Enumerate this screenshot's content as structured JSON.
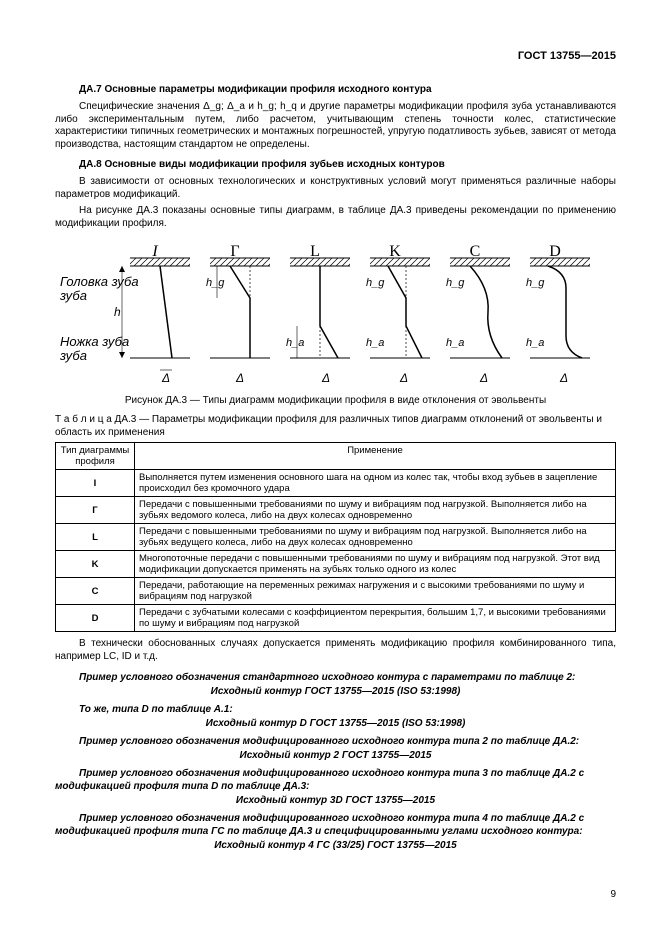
{
  "doc_header": "ГОСТ 13755—2015",
  "section_da7": {
    "heading": "ДА.7 Основные параметры модификации профиля исходного контура",
    "paragraphs": [
      "Специфические значения Δ_g; Δ_a и h_g; h_q и другие параметры модификации профиля зуба устанавливаются либо экспериментальным путем, либо расчетом, учитывающим степень точности колес, статистические характеристики типичных геометрических и монтажных погрешностей, упругую податливость зубьев, зависят от метода производства, настоящим стандартом не определены."
    ]
  },
  "section_da8": {
    "heading": "ДА.8 Основные виды модификации профиля зубьев исходных контуров",
    "paragraphs": [
      "В зависимости от основных технологических и конструктивных условий могут применяться различные наборы параметров модификаций.",
      "На рисунке ДА.3 показаны основные типы диаграмм, в таблице ДА.3 приведены рекомендации по применению модификации профиля."
    ]
  },
  "figure": {
    "profile_letters": [
      "I",
      "Г",
      "L",
      "K",
      "C",
      "D"
    ],
    "side_label_top": "Головка зуба",
    "side_label_bottom": "Ножка зуба",
    "sym_h": "h",
    "sym_hg": "h_g",
    "sym_ha": "h_a",
    "sym_delta": "Δ",
    "caption": "Рисунок ДА.3 — Типы диаграмм модификации профиля в виде отклонения от эвольвенты"
  },
  "table": {
    "caption": "Т а б л и ц а  ДА.3 — Параметры модификации профиля для различных типов диаграмм отклонений от эвольвенты и область их применения",
    "col1_header": "Тип диаграммы профиля",
    "col2_header": "Применение",
    "rows": [
      {
        "type": "I",
        "text": "Выполняется путем изменения основного шага на одном из колес так, чтобы вход зубьев в зацепление происходил без кромочного удара"
      },
      {
        "type": "Г",
        "text": "Передачи с повышенными требованиями по шуму и вибрациям под нагрузкой. Выполняется либо на зубьях ведомого колеса, либо на двух колесах одновременно"
      },
      {
        "type": "L",
        "text": "Передачи с повышенными требованиями по шуму и вибрациям под нагрузкой. Выполняется либо на зубьях ведущего колеса, либо на двух колесах одновременно"
      },
      {
        "type": "K",
        "text": "Многопоточные передачи с повышенными требованиями по шуму и вибрациям под нагрузкой. Этот вид модификации допускается применять на зубьях только одного из колес"
      },
      {
        "type": "C",
        "text": "Передачи, работающие на переменных режимах нагружения и с высокими требованиями по шуму и вибрациям под нагрузкой"
      },
      {
        "type": "D",
        "text": "Передачи с зубчатыми колесами с коэффициентом перекрытия, большим 1,7, и высокими требованиями по шуму и вибрациям под нагрузкой"
      }
    ]
  },
  "after_table_para": "В технически обоснованных случаях допускается применять модификацию профиля комбинированного типа, например LC, ID и т.д.",
  "examples": [
    {
      "heading": "Пример условного обозначения стандартного исходного контура с параметрами по таблице 2:",
      "line": "Исходный контур ГОСТ 13755—2015 (ISO 53:1998)"
    },
    {
      "heading": "То же, типа D по таблице A.1:",
      "line": "Исходный контур D ГОСТ 13755—2015 (ISO 53:1998)"
    },
    {
      "heading": "Пример условного обозначения модифицированного исходного контура типа 2 по таблице ДА.2:",
      "line": "Исходный контур 2 ГОСТ 13755—2015"
    },
    {
      "heading": "Пример условного обозначения модифицированного исходного контура типа 3 по таблице ДА.2 с модификацией профиля типа D по таблице ДА.3:",
      "line": "Исходный контур 3D ГОСТ 13755—2015"
    },
    {
      "heading": "Пример условного обозначения модифицированного исходного контура типа 4 по таблице ДА.2 с модификацией профиля типа ГС по таблице ДА.3 и специфицированными углами исходного контура:",
      "line": "Исходный контур 4 ГС (33/25) ГОСТ 13755—2015"
    }
  ],
  "page_number": "9"
}
